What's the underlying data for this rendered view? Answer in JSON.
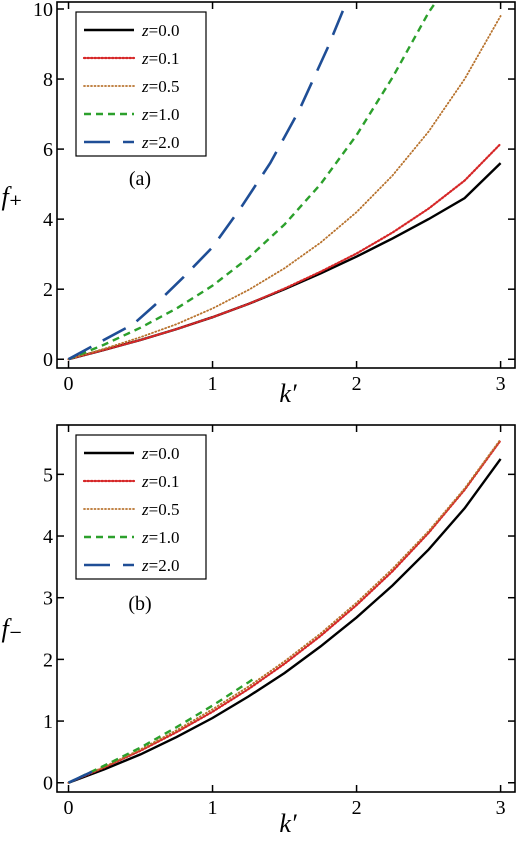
{
  "chart_data": [
    {
      "type": "line",
      "panel_label": "(a)",
      "xlabel": "k′",
      "ylabel": "f₊",
      "xlim": [
        -0.08,
        3.1
      ],
      "ylim": [
        -0.25,
        10.2
      ],
      "xticks": [
        0,
        1,
        2,
        3
      ],
      "yticks": [
        0,
        2,
        4,
        6,
        8,
        10
      ],
      "grid": false,
      "legend_position": "top-left",
      "series": [
        {
          "name": "z=0.0",
          "color": "#000000",
          "style": "solid",
          "x": [
            0,
            0.25,
            0.5,
            0.75,
            1.0,
            1.25,
            1.5,
            1.75,
            2.0,
            2.25,
            2.5,
            2.75,
            3.0
          ],
          "y": [
            0,
            0.27,
            0.55,
            0.86,
            1.2,
            1.58,
            2.0,
            2.45,
            2.93,
            3.45,
            4.0,
            4.6,
            5.6
          ]
        },
        {
          "name": "z=0.1",
          "color": "#d62728",
          "style": "dotted",
          "x": [
            0,
            0.25,
            0.5,
            0.75,
            1.0,
            1.25,
            1.5,
            1.75,
            2.0,
            2.25,
            2.5,
            2.75,
            3.0
          ],
          "y": [
            0,
            0.27,
            0.55,
            0.86,
            1.2,
            1.58,
            2.02,
            2.5,
            3.02,
            3.62,
            4.3,
            5.1,
            6.15
          ]
        },
        {
          "name": "z=0.5",
          "color": "#b8732e",
          "style": "dotted-fine",
          "x": [
            0,
            0.25,
            0.5,
            0.75,
            1.0,
            1.25,
            1.5,
            1.75,
            2.0,
            2.25,
            2.5,
            2.75,
            3.0
          ],
          "y": [
            0,
            0.3,
            0.63,
            1.0,
            1.45,
            1.98,
            2.6,
            3.33,
            4.2,
            5.25,
            6.5,
            8.0,
            9.8
          ]
        },
        {
          "name": "z=1.0",
          "color": "#2ca02c",
          "style": "dashed",
          "x": [
            0,
            0.25,
            0.5,
            0.75,
            1.0,
            1.25,
            1.5,
            1.75,
            2.0,
            2.25,
            2.5,
            2.55
          ],
          "y": [
            0,
            0.42,
            0.9,
            1.45,
            2.1,
            2.9,
            3.85,
            5.0,
            6.4,
            8.05,
            9.9,
            10.2
          ]
        },
        {
          "name": "z=2.0",
          "color": "#1f4e96",
          "style": "longdash",
          "x": [
            0,
            0.2,
            0.45,
            0.6,
            0.8,
            1.0,
            1.2,
            1.4,
            1.6,
            1.8,
            1.93
          ],
          "y": [
            0,
            0.45,
            1.0,
            1.55,
            2.35,
            3.2,
            4.35,
            5.6,
            7.1,
            8.9,
            10.2
          ]
        }
      ]
    },
    {
      "type": "line",
      "panel_label": "(b)",
      "xlabel": "k′",
      "ylabel": "f₋",
      "xlim": [
        -0.08,
        3.1
      ],
      "ylim": [
        -0.15,
        5.8
      ],
      "xticks": [
        0,
        1,
        2,
        3
      ],
      "yticks": [
        0,
        1,
        2,
        3,
        4,
        5
      ],
      "grid": false,
      "legend_position": "top-left",
      "series": [
        {
          "name": "z=0.0",
          "color": "#000000",
          "style": "solid",
          "x": [
            0,
            0.25,
            0.5,
            0.75,
            1.0,
            1.25,
            1.5,
            1.75,
            2.0,
            2.25,
            2.5,
            2.75,
            3.0
          ],
          "y": [
            0,
            0.22,
            0.46,
            0.74,
            1.05,
            1.4,
            1.78,
            2.21,
            2.68,
            3.2,
            3.78,
            4.45,
            5.25
          ]
        },
        {
          "name": "z=0.1",
          "color": "#d62728",
          "style": "dotted",
          "x": [
            0,
            0.25,
            0.5,
            0.75,
            1.0,
            1.25,
            1.5,
            1.75,
            2.0,
            2.25,
            2.5,
            2.75,
            3.0
          ],
          "y": [
            0,
            0.25,
            0.52,
            0.82,
            1.15,
            1.52,
            1.93,
            2.38,
            2.88,
            3.43,
            4.05,
            4.75,
            5.55
          ]
        },
        {
          "name": "z=0.5",
          "color": "#b8732e",
          "style": "dotted-fine",
          "x": [
            0,
            0.25,
            0.5,
            0.75,
            1.0,
            1.25,
            1.5,
            1.75,
            2.0,
            2.25,
            2.5,
            2.75,
            3.0
          ],
          "y": [
            0,
            0.26,
            0.54,
            0.85,
            1.19,
            1.56,
            1.97,
            2.42,
            2.92,
            3.47,
            4.08,
            4.77,
            5.57
          ]
        },
        {
          "name": "z=1.0",
          "color": "#2ca02c",
          "style": "dashed",
          "x": [
            0,
            0.25,
            0.5,
            0.75,
            1.0,
            1.25,
            1.3
          ],
          "y": [
            0,
            0.28,
            0.57,
            0.9,
            1.25,
            1.63,
            1.71
          ]
        },
        {
          "name": "z=2.0",
          "color": "#1f4e96",
          "style": "longdash",
          "x": [
            0,
            0.2
          ],
          "y": [
            0,
            0.22
          ]
        }
      ]
    }
  ]
}
